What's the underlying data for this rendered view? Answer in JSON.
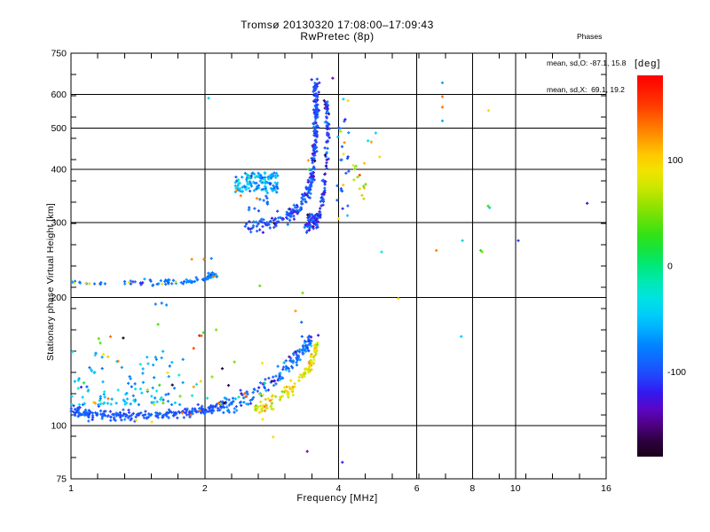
{
  "chart_data": {
    "type": "scatter",
    "title": "Tromsø 20130320 17:08:00–17:09:43",
    "subtitle": "RwPretec (8p)",
    "xlabel": "Frequency [MHz]",
    "ylabel": "Stationary phase Virtual Height [km]",
    "xscale": "log",
    "yscale": "log",
    "xlim": [
      1,
      16
    ],
    "ylim": [
      75,
      750
    ],
    "x_major_ticks": [
      1,
      2,
      4,
      6,
      8,
      10,
      16
    ],
    "y_major_ticks": [
      750,
      600,
      500,
      400,
      300,
      200,
      100,
      75
    ],
    "grid_x": [
      2,
      4,
      6,
      8,
      10
    ],
    "grid_y": [
      100,
      200,
      300,
      400,
      500,
      600
    ],
    "minor_tick_divisions": 20,
    "grid": "on",
    "marker": "plus",
    "annotation": {
      "title": "Phases",
      "line_o": "mean, sd,O: -87.1, 15.8",
      "line_x": "mean, sd,X:  69.1, 19.2"
    },
    "colorbar": {
      "unit_label": "[deg]",
      "ticks": [
        100,
        0,
        -100
      ],
      "range": [
        -180,
        180
      ],
      "orientation": "vertical",
      "stops": [
        [
          -180,
          "#190019"
        ],
        [
          -160,
          "#33004d"
        ],
        [
          -140,
          "#6a00b8"
        ],
        [
          -120,
          "#3318ee"
        ],
        [
          -100,
          "#1e50ff"
        ],
        [
          -75,
          "#0084ff"
        ],
        [
          -50,
          "#00c8ff"
        ],
        [
          -25,
          "#00e9da"
        ],
        [
          0,
          "#00e87b"
        ],
        [
          25,
          "#21e218"
        ],
        [
          55,
          "#8ee000"
        ],
        [
          85,
          "#eeea00"
        ],
        [
          105,
          "#ffc800"
        ],
        [
          130,
          "#ff7d00"
        ],
        [
          155,
          "#ff3000"
        ],
        [
          180,
          "#ff0000"
        ]
      ]
    },
    "clusters": [
      {
        "name": "e-layer-flat-trace",
        "kind": "path",
        "pts": [
          [
            1.0,
            108.5
          ],
          [
            1.1,
            106.5
          ],
          [
            1.3,
            105.5
          ],
          [
            1.55,
            105.5
          ],
          [
            1.8,
            107
          ],
          [
            2.0,
            108.5
          ],
          [
            2.2,
            111.5
          ]
        ],
        "n": 240,
        "jf": 0.006,
        "jh": 1.3,
        "phase": [
          -97,
          9
        ]
      },
      {
        "name": "e-rise-o-branch",
        "kind": "path",
        "pts": [
          [
            2.2,
            111.5
          ],
          [
            2.45,
            115.5
          ],
          [
            2.7,
            122
          ],
          [
            2.95,
            132
          ],
          [
            3.15,
            142
          ],
          [
            3.35,
            151
          ],
          [
            3.45,
            159
          ]
        ],
        "n": 150,
        "jf": 0.008,
        "jh": 3,
        "phase": [
          -85,
          16
        ],
        "phase2": [
          -135,
          12,
          0.07
        ]
      },
      {
        "name": "e-rise-x-branch",
        "kind": "path",
        "pts": [
          [
            2.58,
            109.5
          ],
          [
            2.82,
            113
          ],
          [
            3.05,
            119.5
          ],
          [
            3.25,
            127
          ],
          [
            3.42,
            136
          ],
          [
            3.54,
            147
          ],
          [
            3.58,
            156
          ]
        ],
        "n": 115,
        "jf": 0.007,
        "jh": 2.4,
        "phase": [
          85,
          16
        ],
        "phase2": [
          125,
          12,
          0.16
        ]
      },
      {
        "name": "e-spread-cloud",
        "kind": "box",
        "f": [
          1.0,
          1.8
        ],
        "h": [
          112,
          150
        ],
        "hbias": 2.2,
        "n": 90,
        "phase": [
          -55,
          20
        ]
      },
      {
        "name": "sporadic-cloud-multicolor",
        "kind": "box",
        "f": [
          1.05,
          3.0
        ],
        "h": [
          112,
          168
        ],
        "hbias": 1.6,
        "n": 48,
        "phase": "uniform"
      },
      {
        "name": "band-220km",
        "kind": "path",
        "pts": [
          [
            1.0,
            217
          ],
          [
            1.3,
            216
          ],
          [
            1.6,
            217
          ],
          [
            1.85,
            219
          ],
          [
            2.0,
            222
          ],
          [
            2.12,
            228
          ]
        ],
        "n": 95,
        "jf": 0.008,
        "jh": 1.8,
        "phase": [
          -80,
          16
        ],
        "phase2": [
          95,
          25,
          0.06
        ]
      },
      {
        "name": "f-region-blob",
        "kind": "box",
        "f": [
          2.34,
          2.92
        ],
        "h": [
          352,
          393
        ],
        "hbias": 1,
        "n": 135,
        "phase": [
          -62,
          22
        ]
      },
      {
        "name": "f-mid-sparse",
        "kind": "box",
        "f": [
          2.5,
          2.78
        ],
        "h": [
          315,
          347
        ],
        "hbias": 1,
        "n": 12,
        "phase": [
          -95,
          14
        ]
      },
      {
        "name": "f-o-trace",
        "kind": "path",
        "pts": [
          [
            2.45,
            292
          ],
          [
            2.75,
            298
          ],
          [
            3.05,
            308
          ],
          [
            3.25,
            322
          ],
          [
            3.4,
            347
          ],
          [
            3.48,
            380
          ],
          [
            3.53,
            430
          ],
          [
            3.55,
            490
          ],
          [
            3.56,
            550
          ],
          [
            3.55,
            608
          ],
          [
            3.57,
            645
          ]
        ],
        "n": 290,
        "jf": 0.006,
        "jh": 7,
        "phase": [
          -100,
          13
        ],
        "phase2": [
          -140,
          14,
          0.1
        ]
      },
      {
        "name": "f-o-knot",
        "kind": "box",
        "f": [
          3.4,
          3.6
        ],
        "h": [
          290,
          314
        ],
        "hbias": 1,
        "n": 50,
        "phase": [
          -102,
          11
        ],
        "phase2": [
          -145,
          12,
          0.1
        ]
      },
      {
        "name": "f-x-strand",
        "kind": "path",
        "pts": [
          [
            3.35,
            292
          ],
          [
            3.55,
            302
          ],
          [
            3.65,
            320
          ],
          [
            3.72,
            360
          ],
          [
            3.76,
            420
          ],
          [
            3.78,
            480
          ],
          [
            3.77,
            540
          ],
          [
            3.76,
            575
          ]
        ],
        "n": 115,
        "jf": 0.005,
        "jh": 7,
        "phase": [
          -103,
          16
        ],
        "phase2": [
          -145,
          12,
          0.08
        ]
      },
      {
        "name": "column-4mhz",
        "kind": "box",
        "f": [
          3.95,
          4.22
        ],
        "h": [
          300,
          525
        ],
        "hbias": 1,
        "n": 26,
        "phase": [
          -88,
          20
        ],
        "phase2": [
          90,
          35,
          0.18
        ]
      },
      {
        "name": "group-4p5mhz-warm",
        "kind": "box",
        "f": [
          4.28,
          4.62
        ],
        "h": [
          340,
          420
        ],
        "hbias": 1,
        "n": 14,
        "phase": [
          70,
          30
        ]
      }
    ],
    "singles": [
      [
        2.04,
        588,
        -45
      ],
      [
        3.48,
        650,
        -120
      ],
      [
        3.58,
        652,
        -100
      ],
      [
        3.88,
        655,
        -140
      ],
      [
        4.1,
        585,
        -40
      ],
      [
        4.2,
        580,
        95
      ],
      [
        4.66,
        467,
        -35
      ],
      [
        4.74,
        464,
        120
      ],
      [
        4.85,
        487,
        -45
      ],
      [
        4.95,
        428,
        95
      ],
      [
        5.0,
        256,
        -30
      ],
      [
        5.45,
        199,
        95
      ],
      [
        6.64,
        258,
        130
      ],
      [
        6.85,
        639,
        -65
      ],
      [
        6.85,
        593,
        135
      ],
      [
        6.85,
        560,
        135
      ],
      [
        6.85,
        520,
        -60
      ],
      [
        7.55,
        162,
        -45
      ],
      [
        7.6,
        272,
        -40
      ],
      [
        8.35,
        258,
        20
      ],
      [
        8.42,
        256,
        55
      ],
      [
        8.7,
        550,
        95
      ],
      [
        8.68,
        328,
        30
      ],
      [
        8.75,
        325,
        -45
      ],
      [
        10.15,
        272,
        -110
      ],
      [
        14.5,
        333,
        -120
      ],
      [
        2.85,
        94,
        95
      ],
      [
        3.4,
        87,
        -140
      ],
      [
        4.08,
        82,
        -115
      ],
      [
        1.57,
        173,
        35
      ],
      [
        1.55,
        193,
        -80
      ],
      [
        1.6,
        194,
        -85
      ],
      [
        1.64,
        192,
        -75
      ],
      [
        1.87,
        246,
        125
      ],
      [
        1.99,
        246,
        125
      ],
      [
        2.07,
        247,
        -75
      ],
      [
        2.66,
        213,
        40
      ],
      [
        3.32,
        205,
        45
      ],
      [
        3.2,
        186,
        120
      ],
      [
        3.3,
        175,
        -90
      ],
      [
        3.31,
        162,
        -95
      ],
      [
        3.6,
        163,
        -120
      ],
      [
        3.47,
        154,
        -40
      ],
      [
        3.55,
        150,
        85
      ],
      [
        3.43,
        400,
        30
      ],
      [
        3.42,
        420,
        120
      ],
      [
        2.36,
        358,
        120
      ],
      [
        2.41,
        347,
        130
      ],
      [
        2.62,
        342,
        125
      ],
      [
        1.78,
        107,
        130
      ],
      [
        1.86,
        106,
        140
      ],
      [
        1.95,
        108.5,
        128
      ],
      [
        2.15,
        113,
        135
      ],
      [
        2.48,
        117,
        142
      ],
      [
        1.4,
        103,
        92
      ],
      [
        1.52,
        102,
        88
      ],
      [
        2.7,
        103.5,
        90
      ],
      [
        1.35,
        217,
        90
      ],
      [
        1.72,
        218,
        100
      ],
      [
        1.08,
        216,
        95
      ]
    ]
  }
}
